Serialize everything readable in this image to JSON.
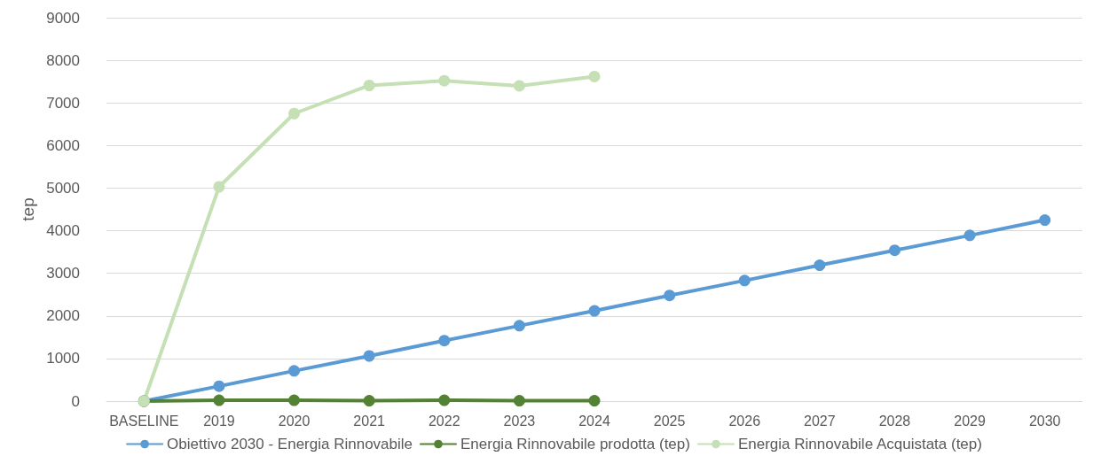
{
  "chart_data": {
    "type": "line",
    "ylabel": "tep",
    "categories": [
      "BASELINE",
      "2019",
      "2020",
      "2021",
      "2022",
      "2023",
      "2024",
      "2025",
      "2026",
      "2027",
      "2028",
      "2029",
      "2030"
    ],
    "series": [
      {
        "name": "Obiettivo 2030 - Energia Rinnovabile",
        "color": "#5b9bd5",
        "values": [
          0,
          350,
          710,
          1060,
          1420,
          1770,
          2120,
          2480,
          2830,
          3190,
          3540,
          3890,
          4250
        ]
      },
      {
        "name": "Energia Rinnovabile prodotta (tep)",
        "color": "#548235",
        "values": [
          0,
          20,
          20,
          10,
          20,
          10,
          10,
          null,
          null,
          null,
          null,
          null,
          null
        ]
      },
      {
        "name": "Energia Rinnovabile Acquistata (tep)",
        "color": "#c5e0b4",
        "values": [
          0,
          5030,
          6750,
          7410,
          7520,
          7400,
          7620,
          null,
          null,
          null,
          null,
          null,
          null
        ]
      }
    ],
    "ylim": [
      0,
      9000
    ],
    "yticks": [
      0,
      1000,
      2000,
      3000,
      4000,
      5000,
      6000,
      7000,
      8000,
      9000
    ],
    "grid": "y",
    "legend": "bottom",
    "marker": "circle",
    "line_style": "solid"
  }
}
